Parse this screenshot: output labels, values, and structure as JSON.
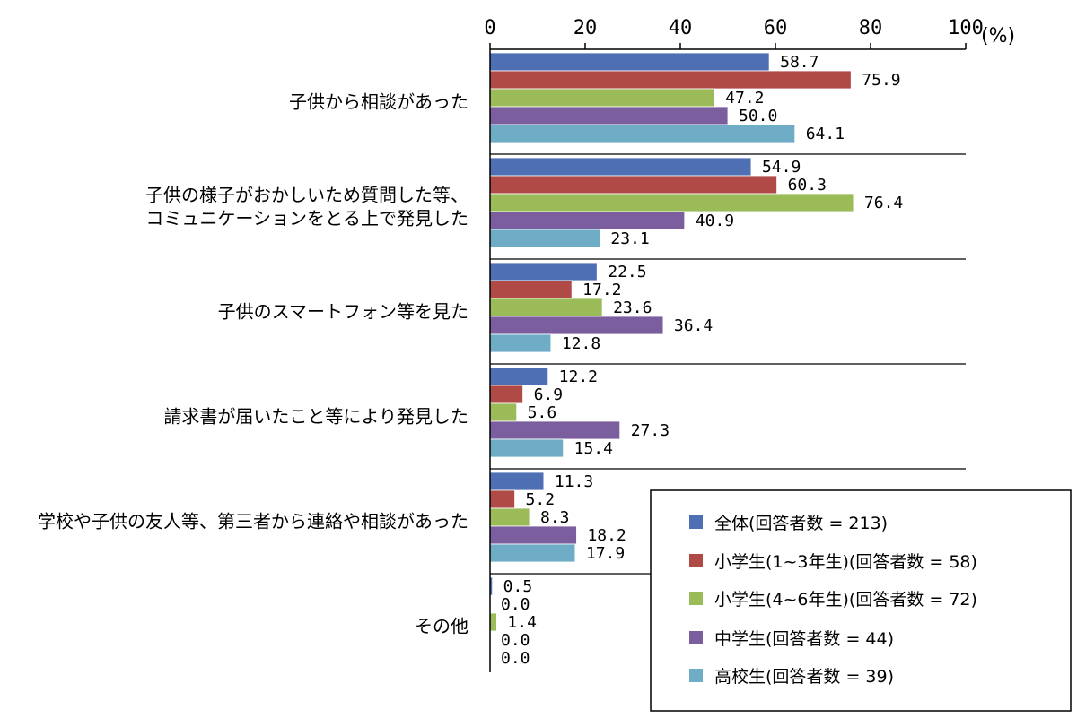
{
  "chart_data": {
    "type": "bar",
    "orientation": "horizontal",
    "xlim": [
      0,
      100
    ],
    "xticks": [
      0,
      20,
      40,
      60,
      80,
      100
    ],
    "tick_labels": [
      "0",
      "20",
      "40",
      "60",
      "80",
      "100"
    ],
    "unit_label": "(%)",
    "grid": false,
    "legend_position": "bottom-right",
    "categories": [
      [
        "子供から相談があった"
      ],
      [
        "子供の様子がおかしいため質問した等、",
        "コミュニケーションをとる上で発見した"
      ],
      [
        "子供のスマートフォン等を見た"
      ],
      [
        "請求書が届いたこと等により発見した"
      ],
      [
        "学校や子供の友人等、第三者から連絡や相談があった"
      ],
      [
        "その他"
      ]
    ],
    "series": [
      {
        "name": "全体(回答者数 = 213)",
        "color": "#4F6FB4",
        "values": [
          58.7,
          54.9,
          22.5,
          12.2,
          11.3,
          0.5
        ],
        "labels": [
          "58.7",
          "54.9",
          "22.5",
          "12.2",
          "11.3",
          "0.5"
        ]
      },
      {
        "name": "小学生(1~3年生)(回答者数 = 58)",
        "color": "#B04A47",
        "values": [
          75.9,
          60.3,
          17.2,
          6.9,
          5.2,
          0.0
        ],
        "labels": [
          "75.9",
          "60.3",
          "17.2",
          "6.9",
          "5.2",
          "0.0"
        ]
      },
      {
        "name": "小学生(4~6年生)(回答者数 = 72)",
        "color": "#9BBB59",
        "values": [
          47.2,
          76.4,
          23.6,
          5.6,
          8.3,
          1.4
        ],
        "labels": [
          "47.2",
          "76.4",
          "23.6",
          "5.6",
          "8.3",
          "1.4"
        ]
      },
      {
        "name": "中学生(回答者数 = 44)",
        "color": "#7B5E9E",
        "values": [
          50.0,
          40.9,
          36.4,
          27.3,
          18.2,
          0.0
        ],
        "labels": [
          "50.0",
          "40.9",
          "36.4",
          "27.3",
          "18.2",
          "0.0"
        ]
      },
      {
        "name": "高校生(回答者数 = 39)",
        "color": "#6FACC5",
        "values": [
          64.1,
          23.1,
          12.8,
          15.4,
          17.9,
          0.0
        ],
        "labels": [
          "64.1",
          "23.1",
          "12.8",
          "15.4",
          "17.9",
          "0.0"
        ]
      }
    ]
  }
}
